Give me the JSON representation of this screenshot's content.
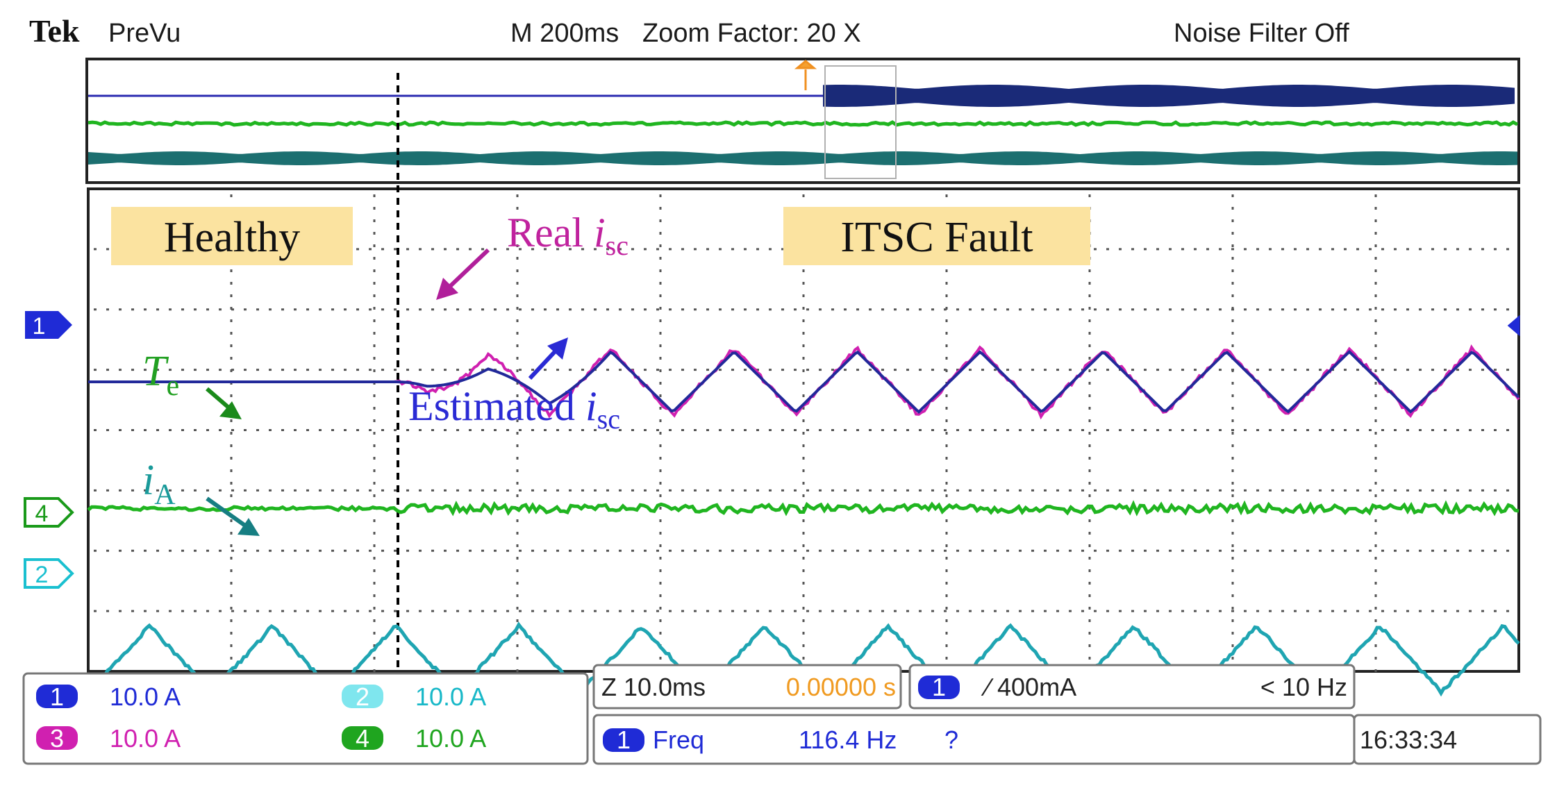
{
  "header": {
    "brand": "Tek",
    "mode": "PreVu",
    "timebase": "M 200ms",
    "zoom": "Zoom Factor: 20 X",
    "noise_filter": "Noise Filter Off"
  },
  "annotations": {
    "healthy": "Healthy",
    "fault": "ITSC Fault",
    "real_isc_text": "Real ",
    "real_isc_var": "i",
    "real_isc_sub": "sc",
    "est_isc_text": "Estimated ",
    "est_isc_var": "i",
    "est_isc_sub": "sc",
    "te_var": "T",
    "te_sub": "e",
    "ia_var": "i",
    "ia_sub": "A"
  },
  "markers": {
    "ch1": "1",
    "ch4": "4",
    "ch2": "2"
  },
  "readouts": {
    "channels": [
      {
        "num": "1",
        "scale": "10.0 A"
      },
      {
        "num": "2",
        "scale": "10.0 A"
      },
      {
        "num": "3",
        "scale": "10.0 A"
      },
      {
        "num": "4",
        "scale": "10.0 A"
      }
    ],
    "zoom_time": "Z 10.0ms",
    "zoom_pos": "0.00000 s",
    "trigger_ch": "1",
    "trigger_level": "∕ 400mA",
    "trigger_freq": "< 10 Hz",
    "meas_ch": "1",
    "meas_name": "Freq",
    "meas_value": "116.4 Hz",
    "meas_status": "?",
    "clock": "16:33:34"
  },
  "colors": {
    "ch1": "#1f2bd6",
    "ch2": "#1ab8c8",
    "ch3": "#d020b0",
    "ch4": "#1fb81f",
    "ia": "#1aa3ad",
    "label_bg": "#fbe3a0"
  },
  "chart_data": {
    "type": "line",
    "title": "",
    "xlabel": "",
    "ylabel": "",
    "x_divisions": 10,
    "y_divisions": 8,
    "fault_start_div": 2.15,
    "series": [
      {
        "name": "Real isc",
        "channel": 3,
        "period_div": 0.86,
        "amplitude_div": 0.55,
        "offset_div": 0.0
      },
      {
        "name": "Estimated isc",
        "channel": 1,
        "period_div": 0.86,
        "amplitude_div": 0.5,
        "offset_div": 0.0
      },
      {
        "name": "Te",
        "channel": 4,
        "amplitude_div": 0.1,
        "offset_div": -2.1
      },
      {
        "name": "iA",
        "channel": 2,
        "period_div": 0.86,
        "amplitude_div": 0.55,
        "offset_div": -4.6
      }
    ]
  }
}
